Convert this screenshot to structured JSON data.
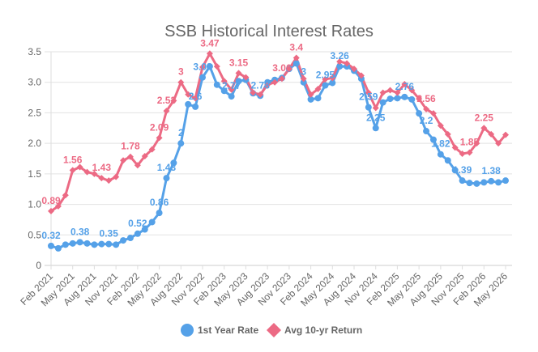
{
  "chart_data": {
    "type": "line",
    "title": "SSB Historical Interest Rates",
    "xlabel": "",
    "ylabel": "",
    "ylim": [
      0,
      3.5
    ],
    "y_ticks": [
      "0",
      "0.5",
      "1.0",
      "1.5",
      "2.0",
      "2.5",
      "3.0",
      "3.5"
    ],
    "grid": true,
    "legend_position": "bottom",
    "categories": [
      "Feb 2021",
      "Mar 2021",
      "Apr 2021",
      "May 2021",
      "Jun 2021",
      "Jul 2021",
      "Aug 2021",
      "Sep 2021",
      "Oct 2021",
      "Nov 2021",
      "Dec 2021",
      "Jan 2022",
      "Feb 2022",
      "Mar 2022",
      "Apr 2022",
      "May 2022",
      "Jun 2022",
      "Jul 2022",
      "Aug 2022",
      "Sep 2022",
      "Oct 2022",
      "Nov 2022",
      "Dec 2022",
      "Jan 2023",
      "Feb 2023",
      "Mar 2023",
      "Apr 2023",
      "May 2023",
      "Jun 2023",
      "Jul 2023",
      "Aug 2023",
      "Sep 2023",
      "Oct 2023",
      "Nov 2023",
      "Dec 2023",
      "Jan 2024",
      "Feb 2024",
      "Mar 2024",
      "Apr 2024",
      "May 2024",
      "Jun 2024",
      "Jul 2024",
      "Aug 2024",
      "Sep 2024",
      "Oct 2024",
      "Nov 2024",
      "Dec 2024",
      "Jan 2025",
      "Feb 2025",
      "Mar 2025",
      "Apr 2025",
      "May 2025",
      "Jun 2025",
      "Jul 2025",
      "Aug 2025",
      "Sep 2025",
      "Oct 2025",
      "Nov 2025",
      "Dec 2025",
      "Jan 2026",
      "Feb 2026",
      "Mar 2026",
      "Apr 2026",
      "May 2026"
    ],
    "series": [
      {
        "name": "1st Year Rate",
        "color": "#55a1e8",
        "marker": "circle",
        "values": [
          0.32,
          0.28,
          0.34,
          0.36,
          0.38,
          0.36,
          0.34,
          0.35,
          0.35,
          0.34,
          0.41,
          0.45,
          0.52,
          0.59,
          0.71,
          0.86,
          1.43,
          1.68,
          2.0,
          2.64,
          2.6,
          3.08,
          3.26,
          2.96,
          2.86,
          2.77,
          3.02,
          3.04,
          2.82,
          2.78,
          3.0,
          3.04,
          3.07,
          3.22,
          3.31,
          3.0,
          2.72,
          2.74,
          2.95,
          2.99,
          3.26,
          3.26,
          3.19,
          3.06,
          2.59,
          2.25,
          2.67,
          2.73,
          2.74,
          2.76,
          2.72,
          2.49,
          2.2,
          2.06,
          1.82,
          1.72,
          1.56,
          1.39,
          1.35,
          1.34,
          1.36,
          1.38,
          1.36,
          1.39
        ],
        "labels": [
          "0.32",
          "",
          "",
          "",
          "0.38",
          "",
          "",
          "",
          "0.35",
          "",
          "",
          "",
          "0.52",
          "",
          "",
          "0.86",
          "1.43",
          "",
          "2",
          "",
          "2.6",
          "3.08",
          "",
          "",
          "",
          "2.77",
          "",
          "",
          "",
          "2.78",
          "",
          "",
          "",
          "",
          "",
          "3",
          "",
          "",
          "2.95",
          "",
          "3.26",
          "",
          "",
          "",
          "2.59",
          "2.25",
          "",
          "",
          "",
          "2.76",
          "",
          "",
          "2.2",
          "",
          "1.82",
          "",
          "",
          "1.39",
          "",
          "",
          "",
          "1.38",
          "",
          ""
        ]
      },
      {
        "name": "Avg 10-yr Return",
        "color": "#ec6a84",
        "marker": "diamond",
        "values": [
          0.89,
          0.97,
          1.15,
          1.56,
          1.61,
          1.53,
          1.5,
          1.43,
          1.39,
          1.45,
          1.72,
          1.78,
          1.64,
          1.79,
          1.9,
          2.09,
          2.53,
          2.7,
          3.0,
          2.8,
          2.74,
          3.25,
          3.47,
          3.26,
          3.02,
          2.88,
          3.15,
          3.08,
          2.83,
          2.8,
          2.96,
          3.0,
          3.06,
          3.22,
          3.4,
          3.06,
          2.8,
          2.89,
          3.05,
          3.07,
          3.34,
          3.31,
          3.22,
          3.11,
          2.83,
          2.58,
          2.83,
          2.87,
          2.83,
          2.97,
          2.87,
          2.73,
          2.56,
          2.49,
          2.29,
          2.15,
          1.93,
          1.83,
          1.85,
          2.0,
          2.25,
          2.15,
          2.0,
          2.14
        ],
        "labels": [
          "0.89",
          "",
          "",
          "1.56",
          "",
          "",
          "",
          "1.43",
          "",
          "",
          "",
          "1.78",
          "",
          "",
          "",
          "2.09",
          "2.53",
          "",
          "3",
          "",
          "",
          "",
          "3.47",
          "",
          "",
          "",
          "3.15",
          "",
          "",
          "",
          "",
          "",
          "3.06",
          "",
          "3.4",
          "",
          "",
          "",
          "",
          "",
          "",
          "",
          "",
          "",
          "",
          "",
          "",
          "",
          "",
          "",
          "",
          "",
          "2.56",
          "",
          "",
          "",
          "",
          "",
          "1.85",
          "",
          "2.25",
          "",
          "",
          ""
        ]
      }
    ]
  }
}
